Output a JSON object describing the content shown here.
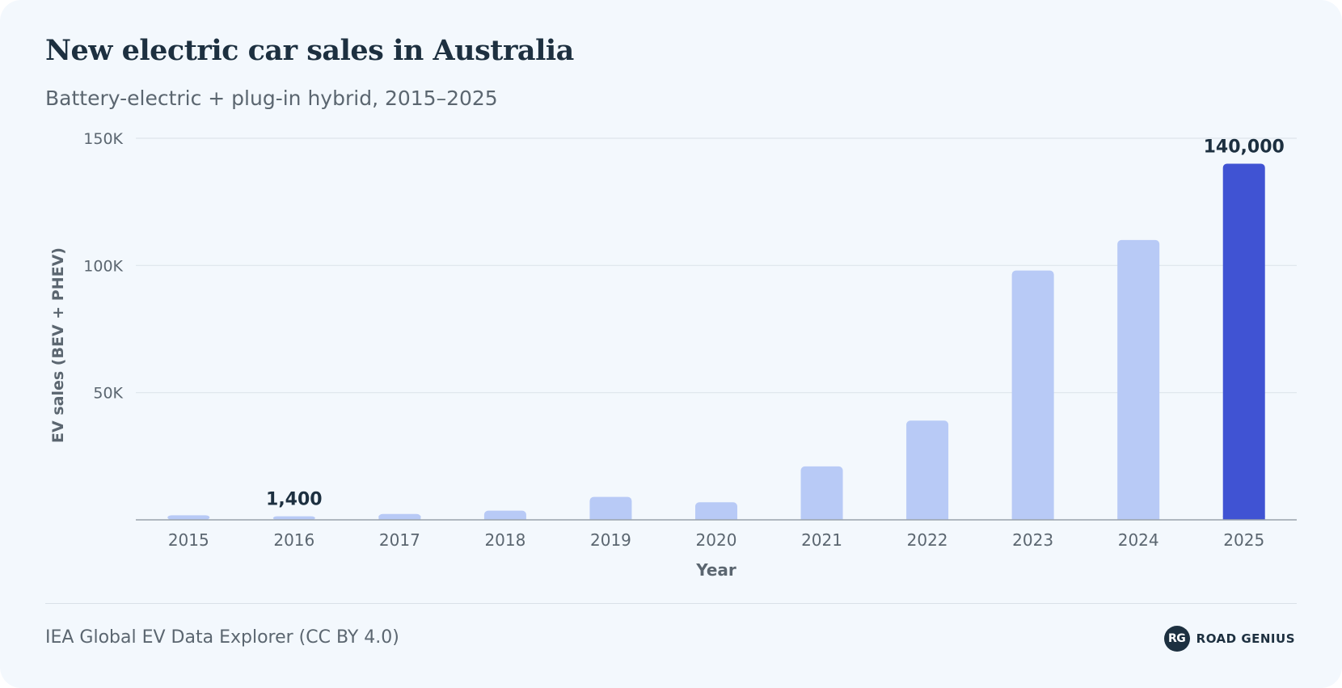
{
  "header": {
    "title": "New electric car sales in Australia",
    "subtitle": "Battery-electric + plug-in hybrid, 2015–2025"
  },
  "footer": {
    "source": "IEA Global EV Data Explorer (CC BY 4.0)",
    "brand_mark": "RG",
    "brand_name": "ROAD GENIUS"
  },
  "colors": {
    "bar": "#b8caf6",
    "highlight_bar": "#4053d3",
    "grid": "#dde5ec",
    "axis_text": "#5b6670",
    "label_text": "#1d3040"
  },
  "chart_data": {
    "type": "bar",
    "title": "New electric car sales in Australia",
    "subtitle": "Battery-electric + plug-in hybrid, 2015–2025",
    "xlabel": "Year",
    "ylabel": "EV sales (BEV + PHEV)",
    "categories": [
      "2015",
      "2016",
      "2017",
      "2018",
      "2019",
      "2020",
      "2021",
      "2022",
      "2023",
      "2024",
      "2025"
    ],
    "values": [
      1800,
      1400,
      2300,
      3600,
      9000,
      6900,
      21000,
      39000,
      98000,
      110000,
      140000
    ],
    "ylim": [
      0,
      150000
    ],
    "yticks": [
      50000,
      100000,
      150000
    ],
    "ytick_labels": [
      "50K",
      "100K",
      "150K"
    ],
    "grid": true,
    "highlight_index": 10,
    "data_labels": [
      {
        "index": 1,
        "text": "1,400"
      },
      {
        "index": 10,
        "text": "140,000"
      }
    ]
  }
}
